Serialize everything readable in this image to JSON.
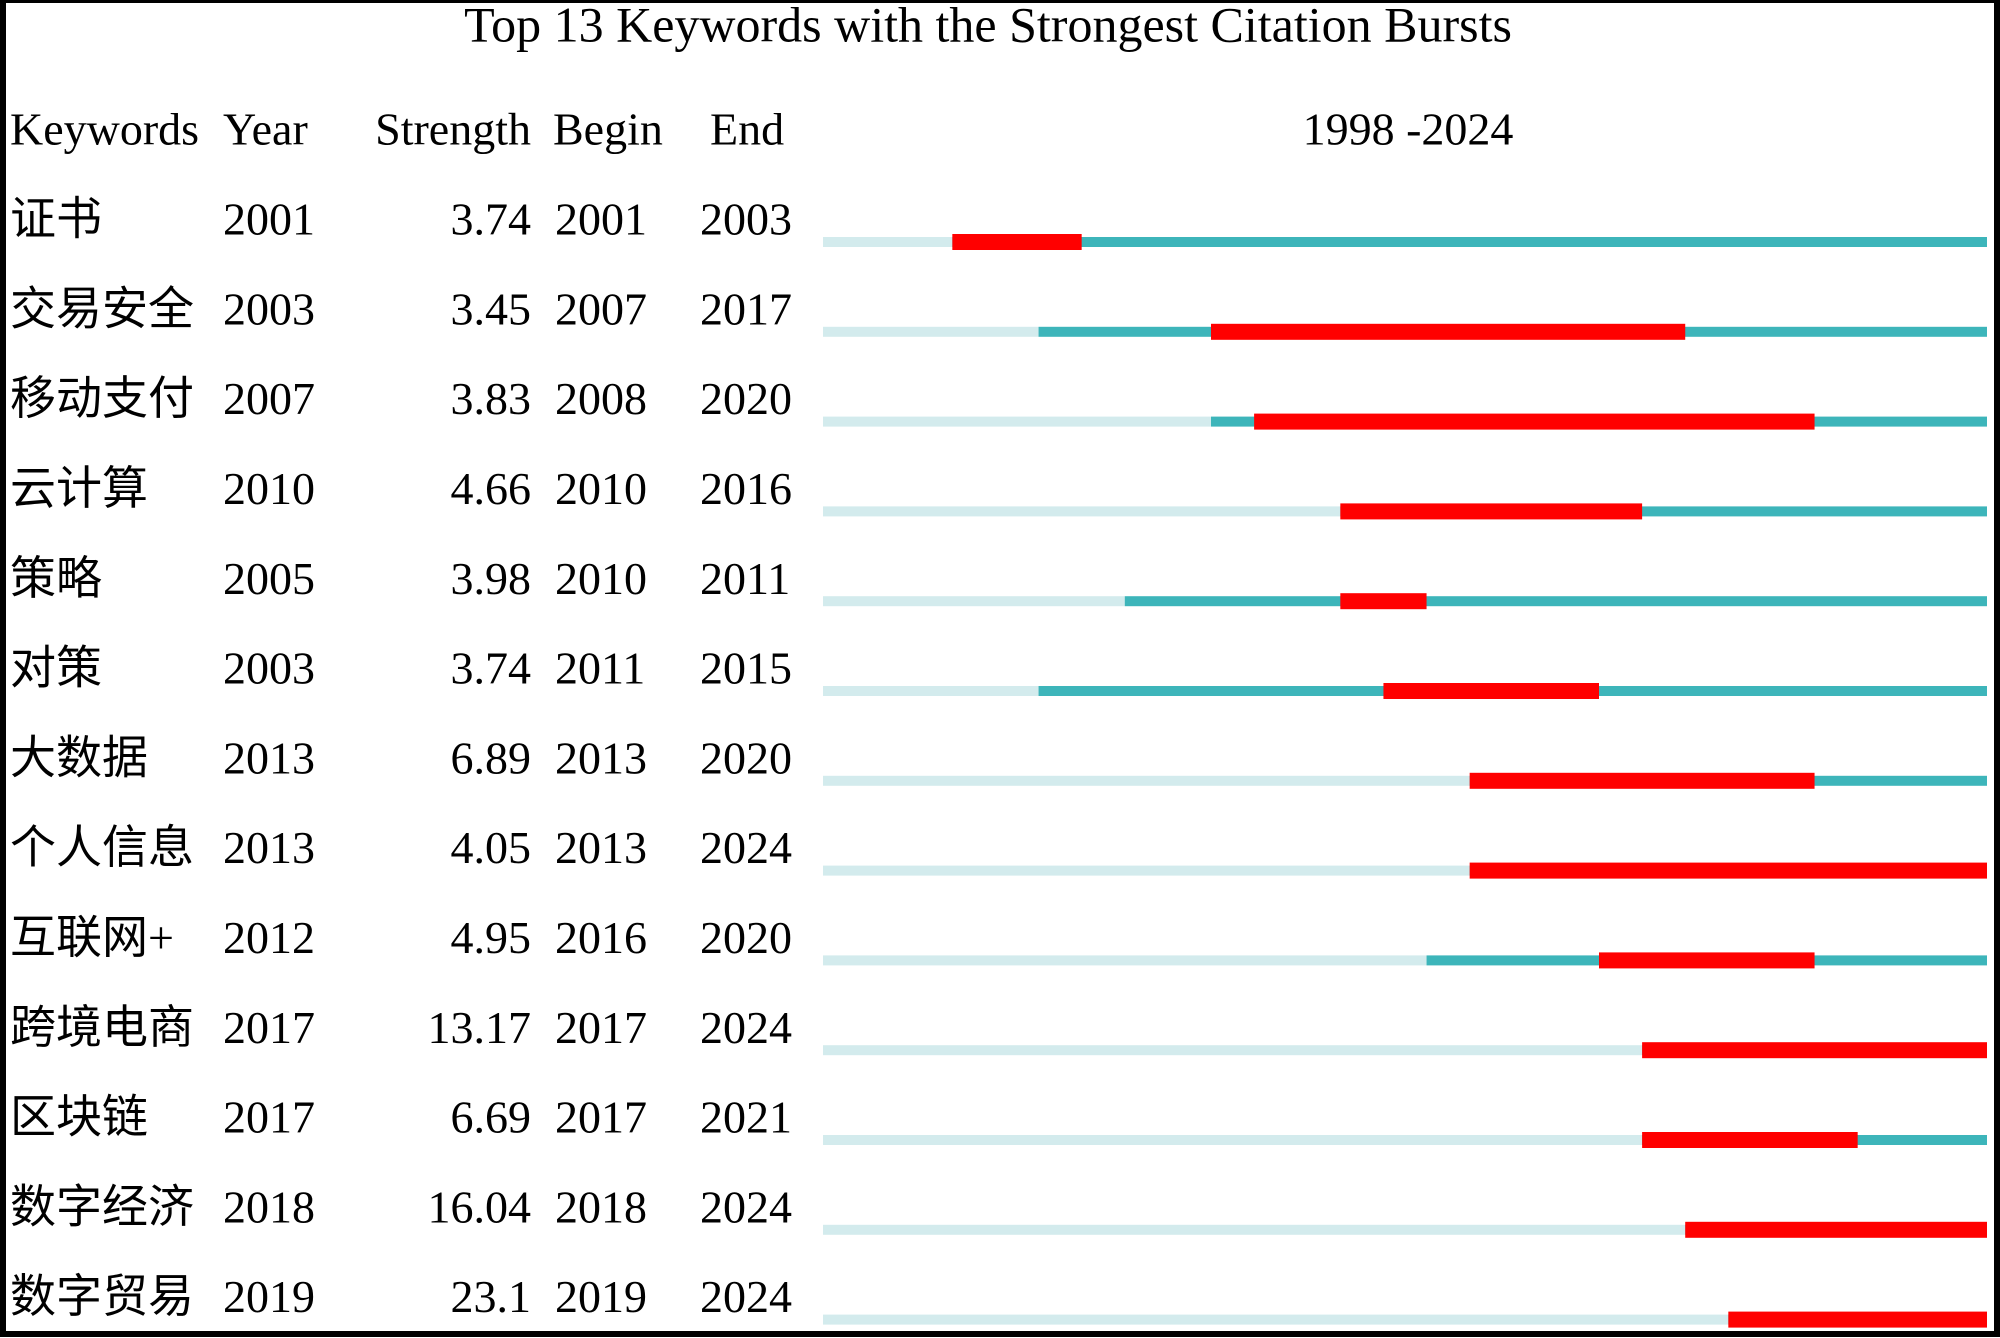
{
  "chart_data": {
    "type": "burst",
    "title": "Top 13 Keywords with the Strongest Citation Bursts",
    "columns": [
      "Keywords",
      "Year",
      "Strength",
      "Begin",
      "End"
    ],
    "range_label": "1998 -2024",
    "xlim": [
      1998,
      2024
    ],
    "keywords": [
      "证书",
      "交易安全",
      "移动支付",
      "云计算",
      "策略",
      "对策",
      "大数据",
      "个人信息",
      "互联网+",
      "跨境电商",
      "区块链",
      "数字经济",
      "数字贸易"
    ],
    "year": [
      2001,
      2003,
      2007,
      2010,
      2005,
      2003,
      2013,
      2013,
      2012,
      2017,
      2017,
      2018,
      2019
    ],
    "strength": [
      3.74,
      3.45,
      3.83,
      4.66,
      3.98,
      3.74,
      6.89,
      4.05,
      4.95,
      13.17,
      6.69,
      16.04,
      23.1
    ],
    "begin": [
      2001,
      2007,
      2008,
      2010,
      2010,
      2011,
      2013,
      2013,
      2016,
      2017,
      2017,
      2018,
      2019
    ],
    "end": [
      2003,
      2017,
      2020,
      2016,
      2011,
      2015,
      2020,
      2024,
      2020,
      2024,
      2021,
      2024,
      2024
    ],
    "colors": {
      "before": "#d3ebed",
      "active": "#3db5ba",
      "burst": "#ff0000"
    }
  }
}
